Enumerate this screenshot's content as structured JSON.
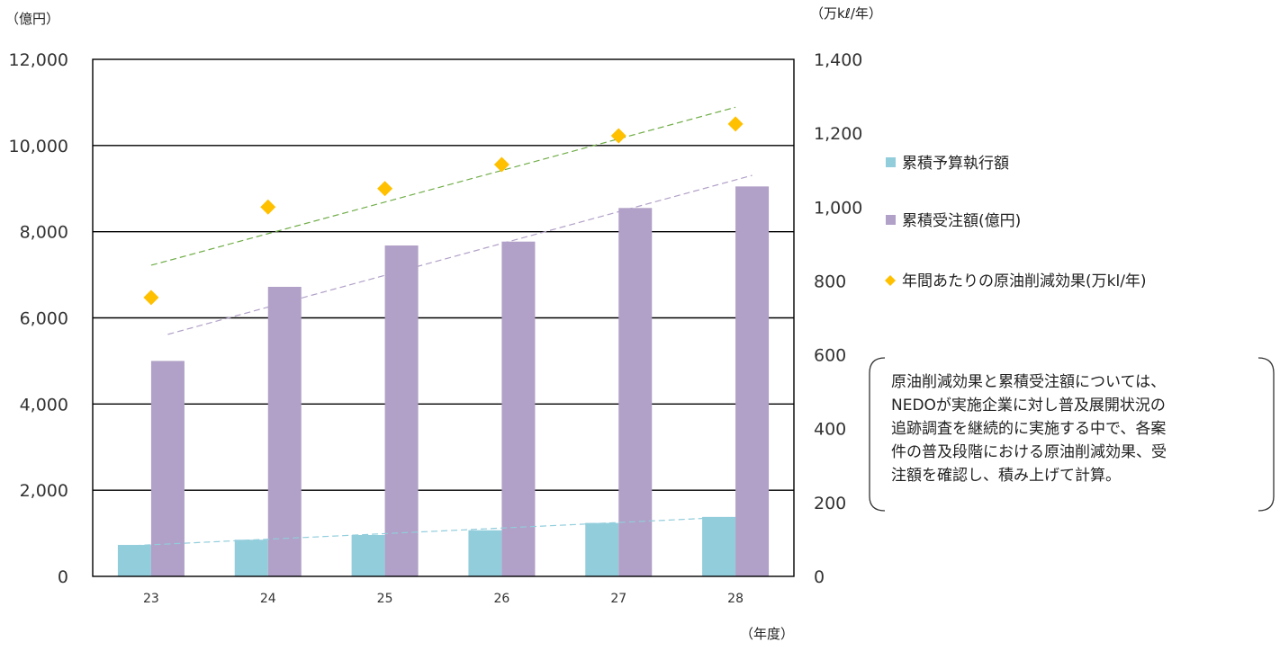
{
  "chart_data": {
    "type": "bar",
    "categories": [
      "23",
      "24",
      "25",
      "26",
      "27",
      "28"
    ],
    "y_left_label": "（億円）",
    "y_right_label": "（万kℓ/年）",
    "x_label": "（年度）",
    "y_left_range": [
      0,
      12000
    ],
    "y_left_ticks": [
      "0",
      "2,000",
      "4,000",
      "6,000",
      "8,000",
      "10,000",
      "12,000"
    ],
    "y_right_range": [
      0,
      1400
    ],
    "y_right_ticks": [
      "0",
      "200",
      "400",
      "600",
      "800",
      "1,000",
      "1,200",
      "1,400"
    ],
    "grid": "horizontal",
    "legend_position": "right",
    "series": [
      {
        "name": "累積予算執行額",
        "kind": "bar",
        "axis": "left",
        "color": "#92cddc",
        "trend_color": "#92cddc",
        "values": [
          730,
          850,
          960,
          1070,
          1240,
          1380
        ]
      },
      {
        "name": "累積受注額(億円)",
        "kind": "bar",
        "axis": "left",
        "color": "#b1a0c7",
        "trend_color": "#b1a0c7",
        "values": [
          5000,
          6720,
          7680,
          7770,
          8550,
          9050
        ]
      },
      {
        "name": "年間あたりの原油削減効果(万kl/年)",
        "kind": "scatter",
        "axis": "right",
        "color": "#ffc000",
        "trend_color": "#70ad47",
        "values": [
          755,
          1000,
          1050,
          1115,
          1193,
          1225
        ]
      }
    ],
    "note_lines": [
      "原油削減効果と累積受注額については、",
      "NEDOが実施企業に対し普及展開状況の",
      "追跡調査を継続的に実施する中で、各案",
      "件の普及段階における原油削減効果、受",
      "注額を確認し、積み上げて計算。"
    ]
  }
}
